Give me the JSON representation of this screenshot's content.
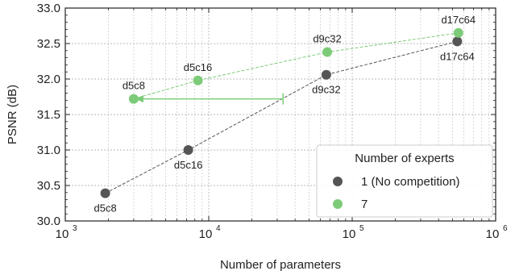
{
  "chart_data": {
    "type": "scatter",
    "xlabel": "Number of parameters",
    "ylabel": "PSNR (dB)",
    "xscale": "log",
    "xlim": [
      1000,
      1000000
    ],
    "ylim": [
      30.0,
      33.0
    ],
    "xticks": [
      {
        "value": 1000,
        "base": "10",
        "exp": "3"
      },
      {
        "value": 10000,
        "base": "10",
        "exp": "4"
      },
      {
        "value": 100000,
        "base": "10",
        "exp": "5"
      },
      {
        "value": 1000000,
        "base": "10",
        "exp": "6"
      }
    ],
    "yticks": [
      "30.0",
      "30.5",
      "31.0",
      "31.5",
      "32.0",
      "32.5",
      "33.0"
    ],
    "grid": true,
    "legend": {
      "title": "Number of experts",
      "placement": "lower-right"
    },
    "series": [
      {
        "name": "1 (No competition)",
        "color": "#555555",
        "line_style": "dashed",
        "points": [
          {
            "x": 1900,
            "y": 30.39,
            "label": "d5c8",
            "label_pos": "below"
          },
          {
            "x": 7200,
            "y": 31.0,
            "label": "d5c16",
            "label_pos": "below"
          },
          {
            "x": 66000,
            "y": 32.06,
            "label": "d9c32",
            "label_pos": "below"
          },
          {
            "x": 540000,
            "y": 32.53,
            "label": "d17c64",
            "label_pos": "below"
          }
        ]
      },
      {
        "name": "7",
        "color": "#7dcb78",
        "line_style": "dashed",
        "points": [
          {
            "x": 3000,
            "y": 31.72,
            "label": "d5c8",
            "label_pos": "above"
          },
          {
            "x": 8400,
            "y": 31.98,
            "label": "d5c16",
            "label_pos": "above"
          },
          {
            "x": 67000,
            "y": 32.38,
            "label": "d9c32",
            "label_pos": "above"
          },
          {
            "x": 550000,
            "y": 32.65,
            "label": "d17c64",
            "label_pos": "above"
          }
        ]
      }
    ],
    "annotation": {
      "type": "arrow",
      "color": "#7dcb78",
      "from": {
        "x": 33000,
        "y": 31.72
      },
      "to": {
        "x": 3000,
        "y": 31.72
      }
    }
  }
}
